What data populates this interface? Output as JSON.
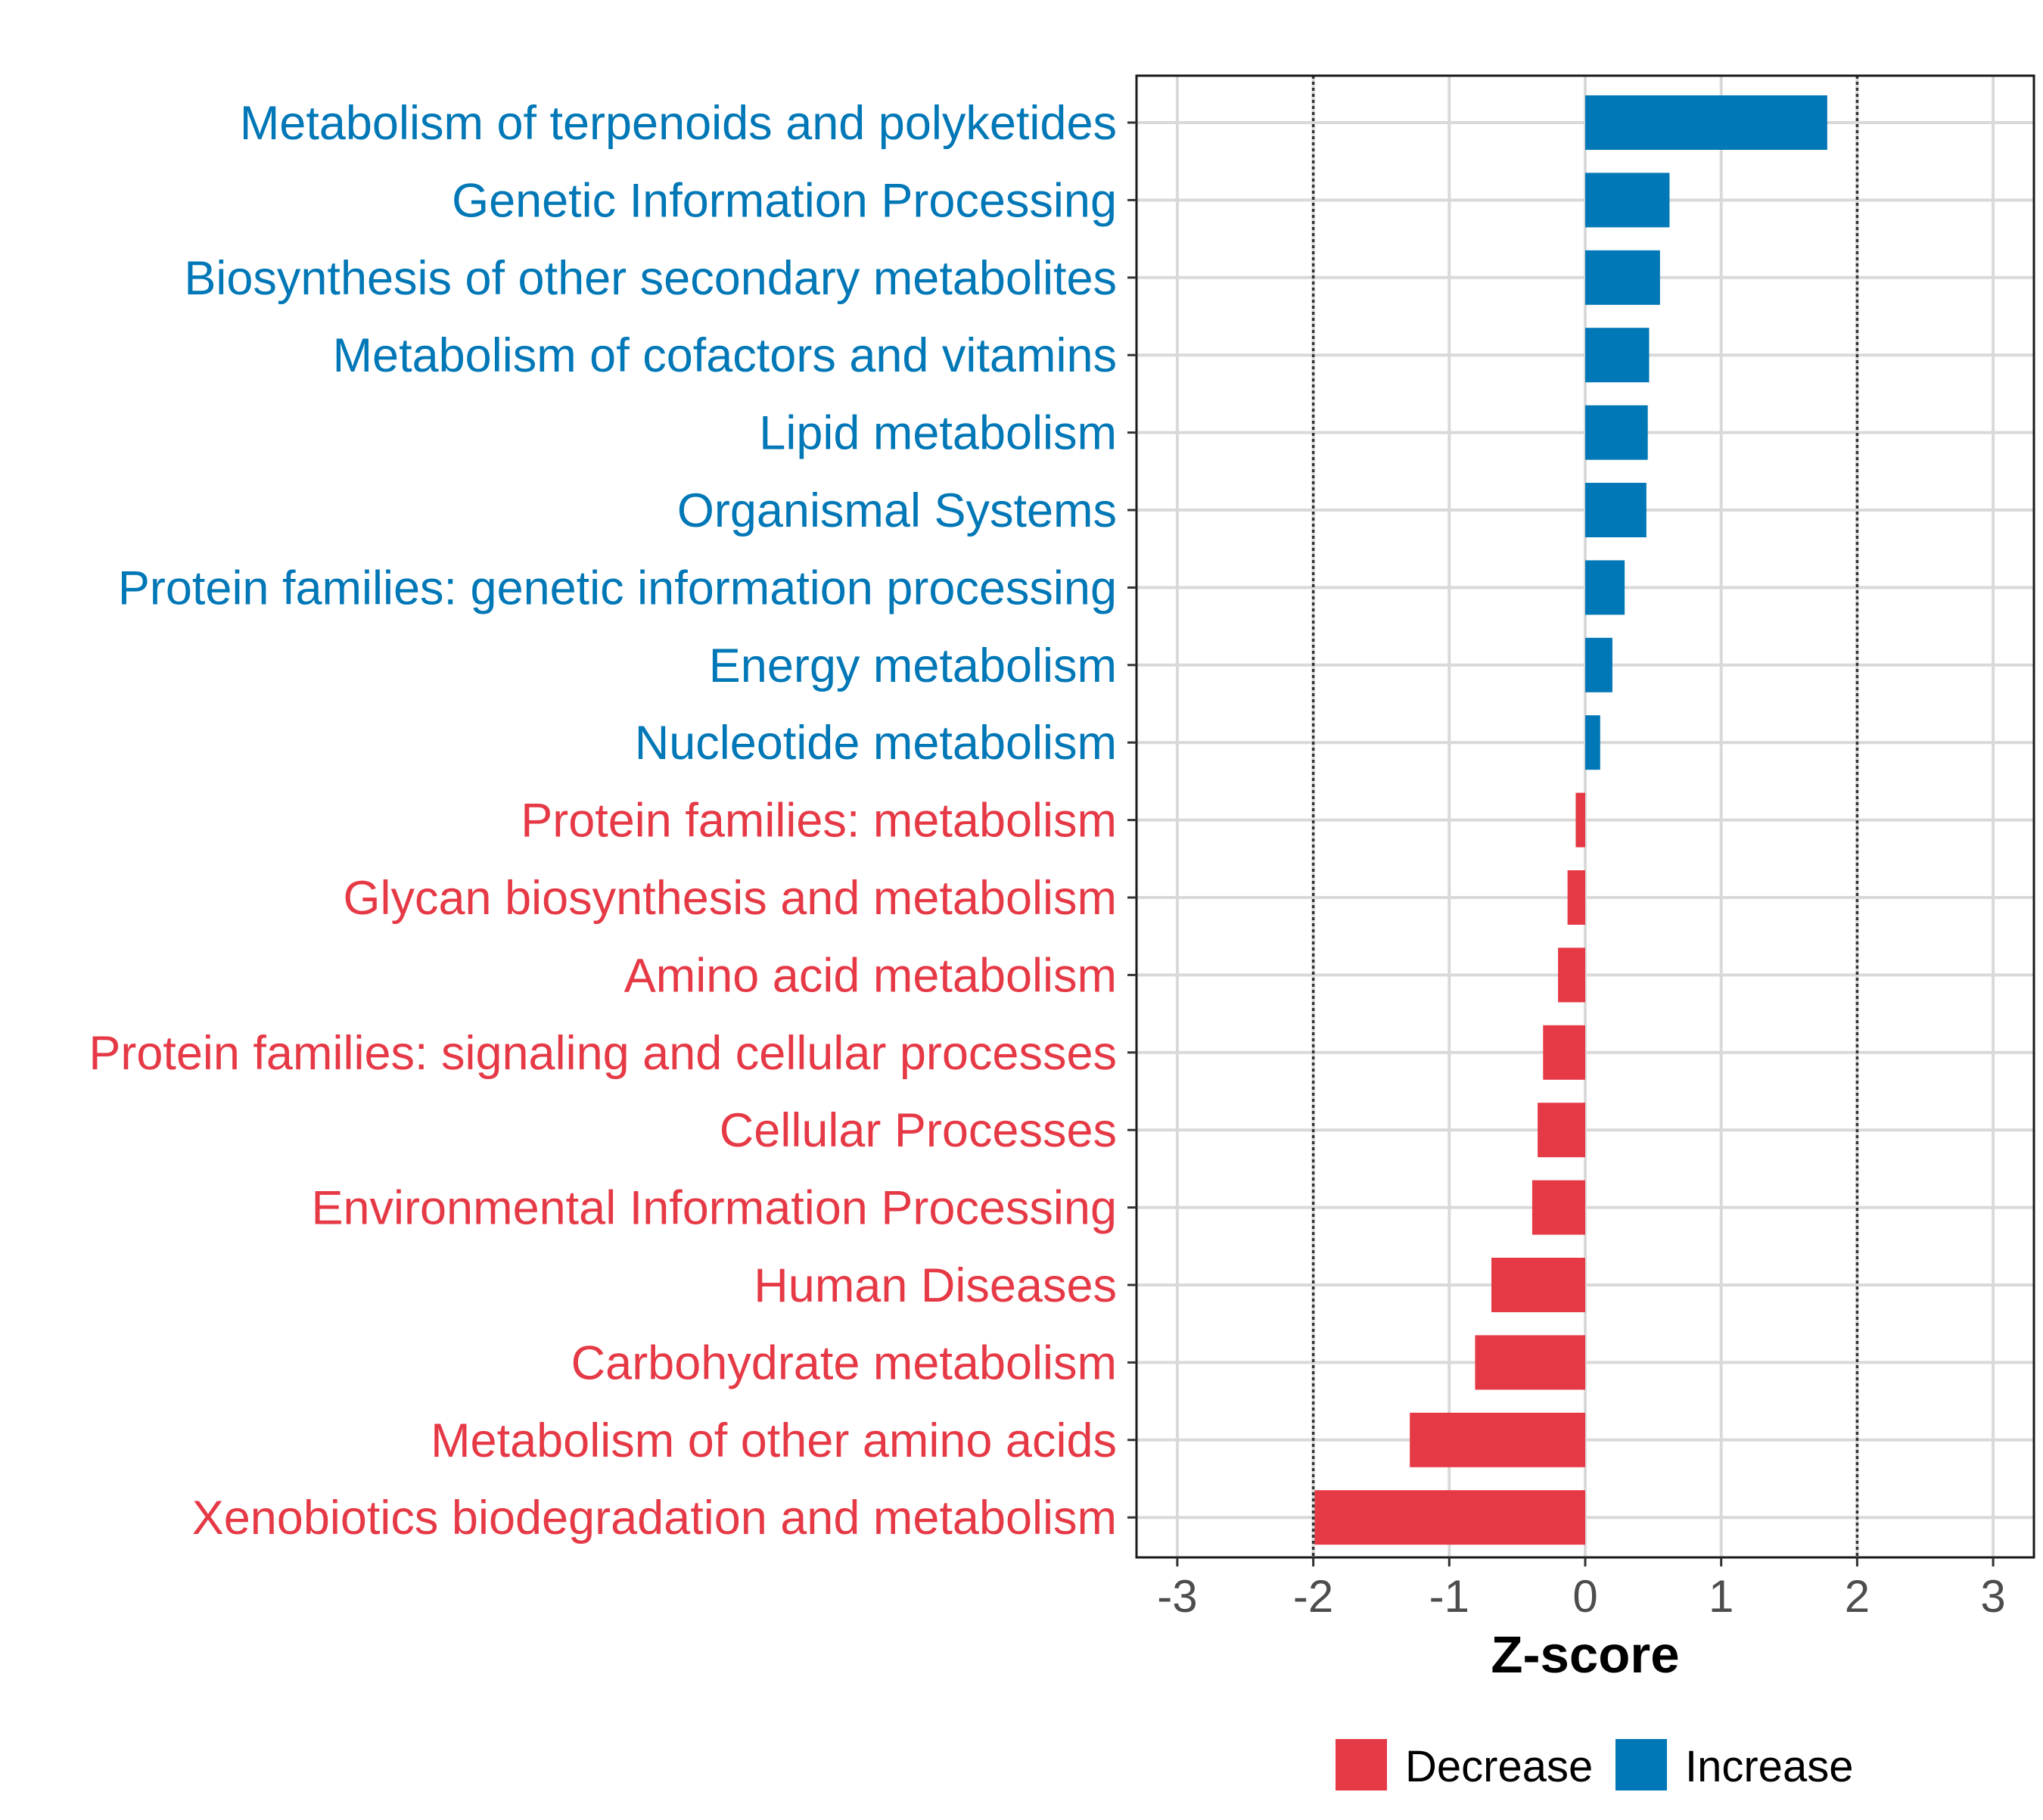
{
  "chart_data": {
    "type": "bar",
    "orientation": "horizontal",
    "categories": [
      "Metabolism of terpenoids and polyketides",
      "Genetic Information Processing",
      "Biosynthesis of other secondary metabolites",
      "Metabolism of cofactors and vitamins",
      "Lipid metabolism",
      "Organismal Systems",
      "Protein families: genetic information processing",
      "Energy metabolism",
      "Nucleotide metabolism",
      "Protein families: metabolism",
      "Glycan biosynthesis and metabolism",
      "Amino acid metabolism",
      "Protein families: signaling and cellular processes",
      "Cellular Processes",
      "Environmental Information Processing",
      "Human Diseases",
      "Carbohydrate metabolism",
      "Metabolism of other amino acids",
      "Xenobiotics biodegradation and metabolism"
    ],
    "values": [
      1.78,
      0.62,
      0.55,
      0.47,
      0.46,
      0.45,
      0.29,
      0.2,
      0.11,
      -0.07,
      -0.13,
      -0.2,
      -0.31,
      -0.35,
      -0.39,
      -0.69,
      -0.81,
      -1.29,
      -1.99
    ],
    "groups": [
      "Increase",
      "Increase",
      "Increase",
      "Increase",
      "Increase",
      "Increase",
      "Increase",
      "Increase",
      "Increase",
      "Decrease",
      "Decrease",
      "Decrease",
      "Decrease",
      "Decrease",
      "Decrease",
      "Decrease",
      "Decrease",
      "Decrease",
      "Decrease"
    ],
    "xlabel": "Z-score",
    "xlim": [
      -3.3,
      3.3
    ],
    "xticks": [
      -3,
      -2,
      -1,
      0,
      1,
      2,
      3
    ],
    "xtick_labels": [
      "-3",
      "-2",
      "-1",
      "0",
      "1",
      "2",
      "3"
    ],
    "reference_lines": [
      -2,
      2
    ],
    "grid": true,
    "legend": {
      "position": "bottom",
      "entries": [
        {
          "label": "Decrease",
          "color": "#E63946"
        },
        {
          "label": "Increase",
          "color": "#0077B6"
        }
      ]
    },
    "colors": {
      "Decrease": "#E63946",
      "Increase": "#0077B6"
    }
  }
}
